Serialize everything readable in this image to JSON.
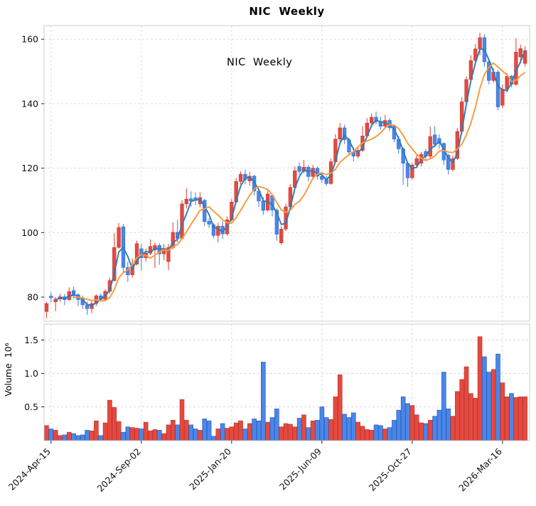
{
  "title": "NIC  Weekly",
  "annotation": "NIC  Weekly",
  "colors": {
    "up": "#e5493f",
    "up_edge": "#bc352c",
    "down": "#4a87e8",
    "down_edge": "#2a5fc0",
    "ma_fast": "#2d7bb6",
    "ma_slow": "#f8993b",
    "grid": "#d9d9d9",
    "spine": "#c9cdd7",
    "tick_text": "#111111"
  },
  "price_axis": {
    "ticks": [
      "80",
      "100",
      "120",
      "140",
      "160"
    ],
    "tick_values": [
      80,
      100,
      120,
      140,
      160
    ]
  },
  "volume_axis": {
    "label": "Volume  10⁶",
    "ticks": [
      "0.5",
      "1.0",
      "1.5"
    ],
    "tick_values": [
      0.5,
      1.0,
      1.5
    ]
  },
  "x_axis": {
    "ticks": [
      {
        "index": 1,
        "label": "2024-Apr-15"
      },
      {
        "index": 21,
        "label": "2024-Sep-02"
      },
      {
        "index": 41,
        "label": "2025-Jan-20"
      },
      {
        "index": 61,
        "label": "2025-Jun-09"
      },
      {
        "index": 81,
        "label": "2025-Oct-27"
      },
      {
        "index": 101,
        "label": "2026-Mar-16"
      }
    ]
  },
  "chart_data": {
    "type": "candlestick-with-volume",
    "frequency": "weekly",
    "title": "NIC  Weekly",
    "price_ylim": [
      71.5,
      164.5
    ],
    "volume_ylim": [
      0,
      1.74
    ],
    "grid": "dashed",
    "ma_windows": [
      3,
      7
    ],
    "candles_format": [
      "open",
      "high",
      "low",
      "close"
    ],
    "candles": [
      [
        75.5,
        78.5,
        73.5,
        78
      ],
      [
        80.3,
        81.5,
        78.4,
        79.8
      ],
      [
        78.5,
        80,
        75.6,
        79.4
      ],
      [
        79.4,
        81,
        78.5,
        80.1
      ],
      [
        80.1,
        81,
        77.5,
        79.2
      ],
      [
        79.2,
        83,
        78.8,
        81.7
      ],
      [
        82,
        83.3,
        79.5,
        80.7
      ],
      [
        80.7,
        81.2,
        77.2,
        79.2
      ],
      [
        79.5,
        80.5,
        76.3,
        77.6
      ],
      [
        77.6,
        78.5,
        74.5,
        76.4
      ],
      [
        76.4,
        78.8,
        75,
        78
      ],
      [
        78,
        80.9,
        77.2,
        80.4
      ],
      [
        80.4,
        81.2,
        78.6,
        79.3
      ],
      [
        79.3,
        82.4,
        78.6,
        81.8
      ],
      [
        81.8,
        86,
        81,
        85.1
      ],
      [
        85.1,
        99.8,
        84.8,
        95.4
      ],
      [
        95.4,
        103,
        95,
        101.6
      ],
      [
        101.8,
        102.7,
        87.5,
        89.2
      ],
      [
        89.2,
        91,
        84.7,
        86.9
      ],
      [
        86.9,
        92,
        86,
        90.2
      ],
      [
        90.2,
        97.5,
        89.8,
        96.6
      ],
      [
        95,
        96.5,
        88.3,
        92.2
      ],
      [
        92.2,
        95,
        91,
        93.6
      ],
      [
        93.6,
        97.9,
        93,
        95.7
      ],
      [
        94.6,
        97,
        89,
        96
      ],
      [
        96,
        96.8,
        90,
        93.4
      ],
      [
        93.4,
        96.5,
        91.5,
        95.1
      ],
      [
        91,
        96.5,
        88.4,
        95.4
      ],
      [
        95.4,
        103.2,
        94.8,
        100.1
      ],
      [
        100.1,
        104,
        97,
        98.2
      ],
      [
        98.2,
        110,
        97.9,
        108.9
      ],
      [
        108.9,
        113.7,
        107.5,
        110.4
      ],
      [
        110.5,
        112.8,
        108,
        109.8
      ],
      [
        110.8,
        112.5,
        108.5,
        110.1
      ],
      [
        108.9,
        112.5,
        107.8,
        110.9
      ],
      [
        110,
        110.5,
        102,
        103.4
      ],
      [
        103.5,
        104.5,
        101.4,
        102.6
      ],
      [
        102.4,
        103,
        98.3,
        99.1
      ],
      [
        99.1,
        103,
        97,
        102
      ],
      [
        102,
        103.5,
        98,
        99.6
      ],
      [
        99.6,
        105,
        99,
        104
      ],
      [
        104,
        110.5,
        103.5,
        109.5
      ],
      [
        109.5,
        117,
        109,
        115.9
      ],
      [
        115.9,
        119,
        115,
        118.1
      ],
      [
        118.1,
        119.5,
        115,
        116.5
      ],
      [
        116,
        118.8,
        114.5,
        117.5
      ],
      [
        117.5,
        118,
        111.5,
        112.9
      ],
      [
        112.9,
        113.5,
        108,
        109.8
      ],
      [
        109.8,
        111,
        105.5,
        106.9
      ],
      [
        107,
        113,
        106.5,
        112
      ],
      [
        111.5,
        112,
        105,
        107
      ],
      [
        107,
        107.5,
        97.5,
        99.5
      ],
      [
        96.8,
        102,
        96.2,
        101.1
      ],
      [
        101.1,
        109,
        100.5,
        108
      ],
      [
        108,
        115,
        107.5,
        114
      ],
      [
        114,
        120.5,
        113.5,
        119.2
      ],
      [
        120.5,
        121.8,
        118,
        119
      ],
      [
        119,
        122.5,
        118.5,
        120.3
      ],
      [
        120.3,
        121,
        116,
        117.4
      ],
      [
        117.4,
        121,
        116.5,
        120
      ],
      [
        120,
        120.5,
        116.5,
        117.5
      ],
      [
        117.5,
        118.5,
        115.5,
        116.5
      ],
      [
        116.5,
        117.5,
        114.5,
        115.2
      ],
      [
        115.2,
        123,
        114.8,
        122
      ],
      [
        122,
        130.5,
        121.5,
        129
      ],
      [
        129,
        134,
        128,
        132.5
      ],
      [
        132.5,
        133.5,
        127.5,
        128.8
      ],
      [
        128.8,
        129.5,
        124,
        125
      ],
      [
        125,
        126.5,
        122.1,
        123.7
      ],
      [
        123.7,
        126.5,
        123,
        125.5
      ],
      [
        125.5,
        133,
        125,
        130
      ],
      [
        130,
        135.5,
        129.5,
        134
      ],
      [
        134,
        137,
        133,
        135.8
      ],
      [
        135.8,
        137.5,
        133.5,
        134.5
      ],
      [
        134.5,
        136,
        132,
        133
      ],
      [
        133,
        136.5,
        132.5,
        134.8
      ],
      [
        134.8,
        135.5,
        131.5,
        132.5
      ],
      [
        133,
        133.5,
        128,
        129
      ],
      [
        129,
        130,
        124.5,
        126
      ],
      [
        126,
        126.5,
        114.8,
        121.5
      ],
      [
        121.5,
        122,
        114.2,
        117
      ],
      [
        117,
        121.5,
        116.5,
        121
      ],
      [
        121,
        124.5,
        120,
        123
      ],
      [
        121.5,
        125,
        120.5,
        124.3
      ],
      [
        125.2,
        126,
        122.5,
        123.7
      ],
      [
        123.7,
        132.9,
        123,
        129.8
      ],
      [
        130.3,
        133,
        126.5,
        127.4
      ],
      [
        129.2,
        130.5,
        126,
        127.7
      ],
      [
        127.7,
        128,
        121,
        122.5
      ],
      [
        124,
        124.5,
        118.1,
        119.6
      ],
      [
        119.6,
        124,
        119,
        123
      ],
      [
        123,
        132.5,
        122.5,
        131.4
      ],
      [
        131.4,
        142,
        130.5,
        140.6
      ],
      [
        140.6,
        148.5,
        139.5,
        147.5
      ],
      [
        147.5,
        155,
        146.5,
        153.4
      ],
      [
        153.4,
        158.5,
        152,
        157
      ],
      [
        157,
        162,
        155,
        160.5
      ],
      [
        160.5,
        161.5,
        151.5,
        153
      ],
      [
        153,
        154,
        146,
        147.2
      ],
      [
        147.2,
        151,
        146.5,
        149.8
      ],
      [
        149.8,
        150.5,
        138,
        139
      ],
      [
        139.5,
        146,
        138.5,
        144.5
      ],
      [
        144.5,
        149.5,
        143.5,
        148.5
      ],
      [
        148.5,
        149,
        145,
        146
      ],
      [
        146,
        160.3,
        145.5,
        156
      ],
      [
        154.5,
        158.3,
        152.5,
        157.1
      ],
      [
        152.5,
        157.8,
        151.5,
        156.5
      ]
    ],
    "volumes_millions": [
      0.22,
      0.17,
      0.15,
      0.07,
      0.08,
      0.12,
      0.1,
      0.07,
      0.08,
      0.15,
      0.14,
      0.29,
      0.07,
      0.26,
      0.6,
      0.49,
      0.28,
      0.12,
      0.2,
      0.19,
      0.18,
      0.17,
      0.27,
      0.14,
      0.16,
      0.15,
      0.1,
      0.23,
      0.3,
      0.23,
      0.61,
      0.3,
      0.23,
      0.17,
      0.15,
      0.32,
      0.29,
      0.06,
      0.17,
      0.25,
      0.18,
      0.2,
      0.26,
      0.29,
      0.17,
      0.25,
      0.32,
      0.29,
      1.17,
      0.27,
      0.34,
      0.47,
      0.2,
      0.25,
      0.24,
      0.2,
      0.33,
      0.38,
      0.19,
      0.29,
      0.3,
      0.5,
      0.34,
      0.31,
      0.65,
      0.98,
      0.39,
      0.34,
      0.41,
      0.27,
      0.21,
      0.16,
      0.15,
      0.23,
      0.22,
      0.17,
      0.19,
      0.3,
      0.45,
      0.65,
      0.55,
      0.52,
      0.38,
      0.26,
      0.25,
      0.3,
      0.36,
      0.45,
      1.02,
      0.47,
      0.36,
      0.73,
      0.91,
      1.1,
      0.7,
      0.63,
      1.55,
      1.25,
      1.02,
      1.06,
      1.29,
      0.86,
      0.65,
      0.7,
      0.64,
      0.65,
      0.65
    ]
  }
}
